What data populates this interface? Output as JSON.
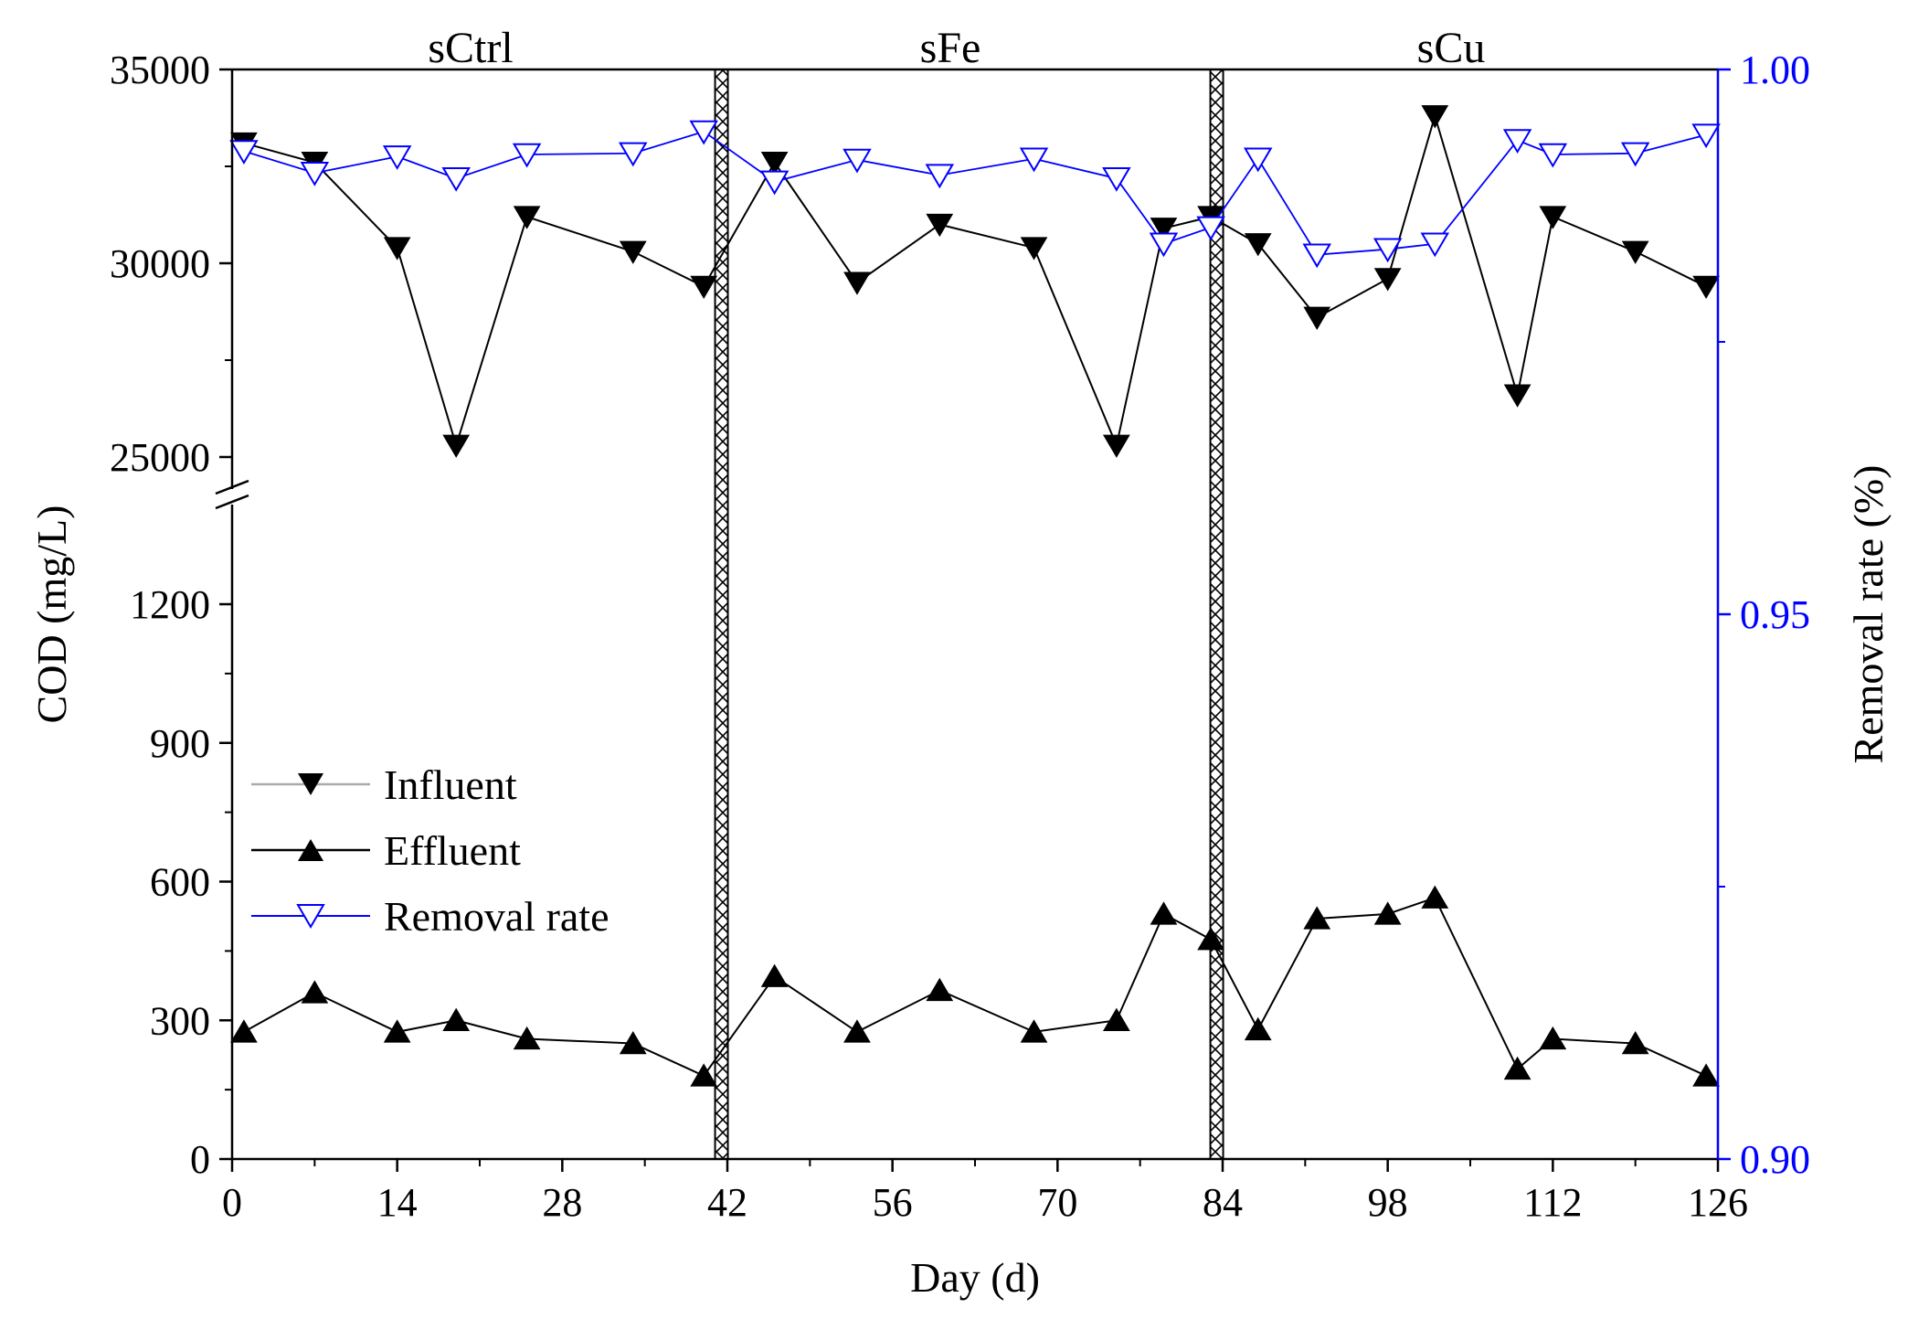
{
  "chart_data": {
    "type": "line",
    "xlabel": "Day (d)",
    "ylabel_left": "COD (mg/L)",
    "ylabel_right": "Removal rate (%)",
    "x_ticks": [
      "0",
      "14",
      "28",
      "42",
      "56",
      "70",
      "84",
      "98",
      "112",
      "126"
    ],
    "x_range": [
      0,
      126
    ],
    "left_axis_upper": {
      "range": [
        25000,
        35000
      ],
      "ticks": [
        "25000",
        "30000",
        "35000"
      ]
    },
    "left_axis_lower": {
      "range": [
        0,
        1400
      ],
      "ticks": [
        "0",
        "300",
        "600",
        "900",
        "1200"
      ]
    },
    "right_axis": {
      "range": [
        0.9,
        1.0
      ],
      "ticks": [
        "0.90",
        "0.95",
        "1.00"
      ],
      "color": "#0000ff"
    },
    "phases": [
      {
        "label": "sCtrl",
        "start": 0,
        "end": 41.5
      },
      {
        "label": "sFe",
        "start": 42,
        "end": 83.5
      },
      {
        "label": "sCu",
        "start": 84,
        "end": 126
      }
    ],
    "separators": [
      41.5,
      83.5
    ],
    "series": [
      {
        "name": "Influent",
        "axis": "left_upper",
        "marker": "filled-down-triangle",
        "x": [
          1,
          7,
          14,
          19,
          25,
          34,
          40,
          46,
          53,
          60,
          68,
          75,
          79,
          83,
          87,
          92,
          98,
          102,
          109,
          112,
          119,
          125
        ],
        "values": [
          33100,
          32600,
          30400,
          25300,
          31200,
          30300,
          29400,
          32600,
          29500,
          31000,
          30400,
          25300,
          30900,
          31200,
          30500,
          28600,
          29600,
          33800,
          26600,
          31200,
          30300,
          29400
        ]
      },
      {
        "name": "Effluent",
        "axis": "left_lower",
        "marker": "filled-up-triangle",
        "x": [
          1,
          7,
          14,
          19,
          25,
          34,
          40,
          46,
          53,
          60,
          68,
          75,
          79,
          83,
          87,
          92,
          98,
          102,
          109,
          112,
          119,
          125
        ],
        "values": [
          275,
          360,
          275,
          300,
          260,
          250,
          180,
          395,
          275,
          365,
          275,
          300,
          530,
          475,
          280,
          520,
          530,
          565,
          195,
          260,
          250,
          180
        ]
      },
      {
        "name": "Removal rate",
        "axis": "right",
        "marker": "open-down-triangle",
        "color": "#0000ff",
        "x": [
          1,
          7,
          14,
          19,
          25,
          34,
          40,
          46,
          53,
          60,
          68,
          75,
          79,
          83,
          87,
          92,
          98,
          102,
          109,
          112,
          119,
          125
        ],
        "values": [
          0.9925,
          0.9905,
          0.992,
          0.99,
          0.9922,
          0.9923,
          0.9943,
          0.9897,
          0.9917,
          0.9903,
          0.9918,
          0.99,
          0.984,
          0.9855,
          0.9918,
          0.983,
          0.9835,
          0.984,
          0.9935,
          0.9922,
          0.9923,
          0.994
        ]
      }
    ],
    "legend": {
      "placement": "lower-left"
    }
  }
}
